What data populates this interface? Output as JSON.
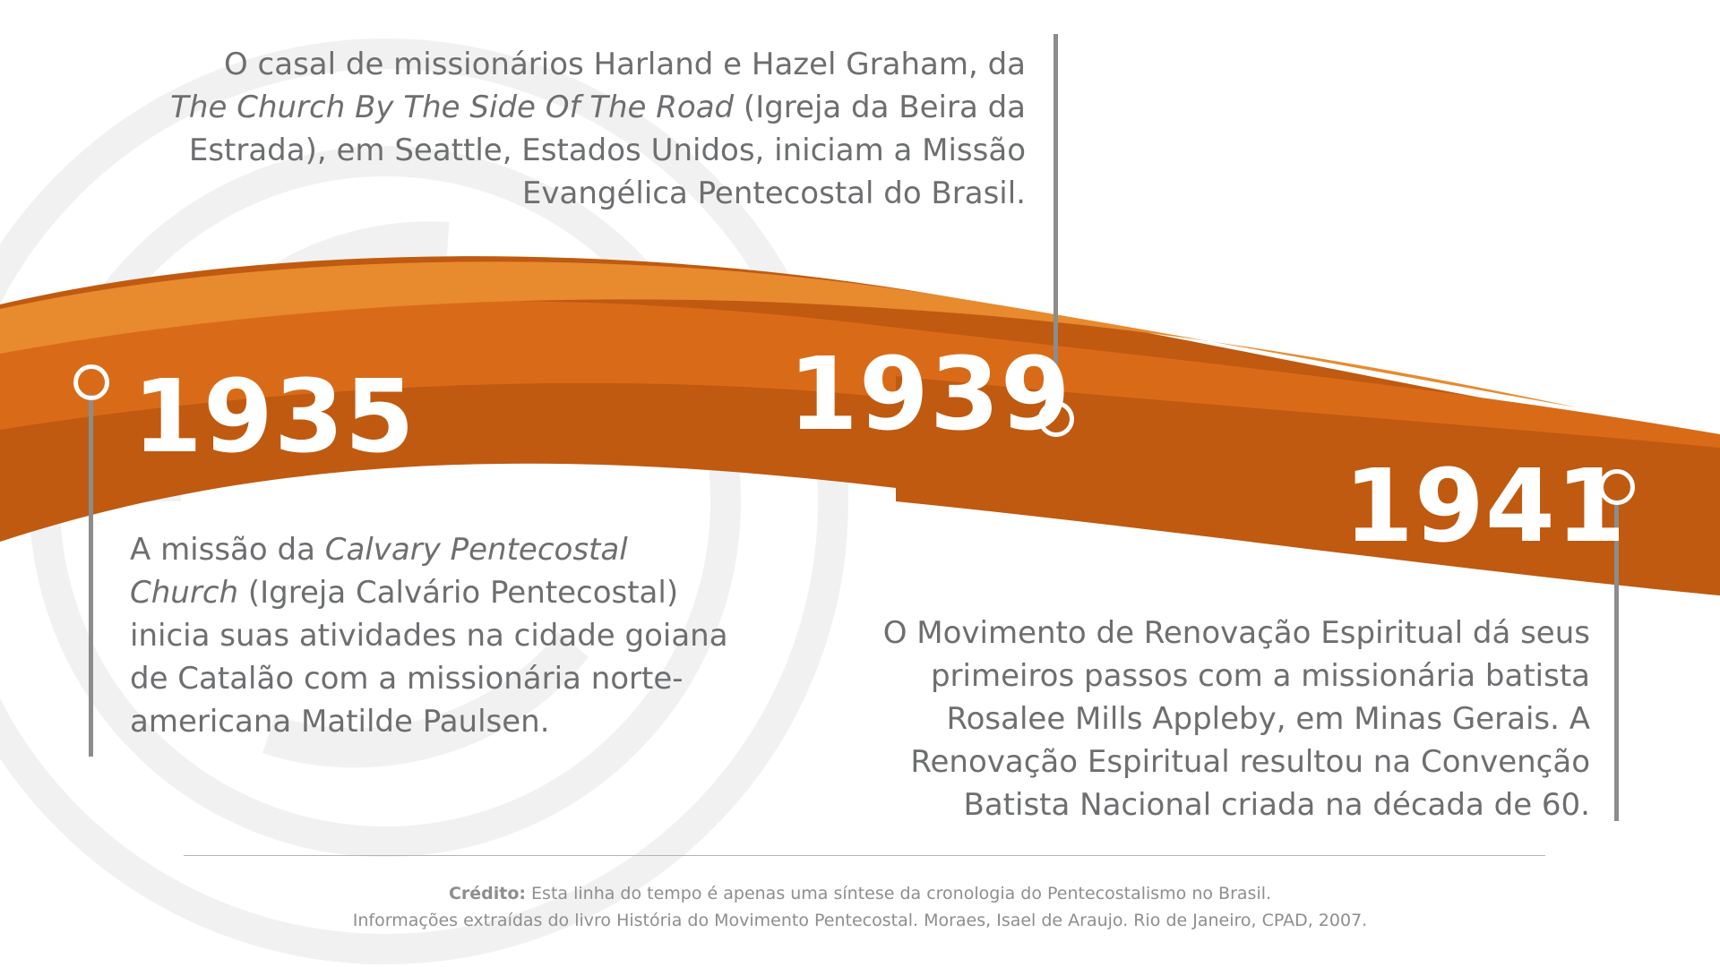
{
  "colors": {
    "band_light": "#e88a2e",
    "band_mid": "#d96b18",
    "band_dark": "#c05a10",
    "text_gray": "#6d6e70",
    "pin_gray": "#8c8c8c",
    "watermark": "#f1f1f1"
  },
  "events": [
    {
      "year": "1935",
      "text_runs": [
        {
          "text": "A missão da ",
          "italic": false
        },
        {
          "text": "Calvary Pentecostal Church",
          "italic": true
        },
        {
          "text": " (Igreja Calvário Pentecostal) inicia suas atividades na cidade goiana de Catalão com a missionária norte-americana Matilde Paulsen.",
          "italic": false
        }
      ]
    },
    {
      "year": "1939",
      "text_runs": [
        {
          "text": "O casal de missionários Harland e Hazel Graham, da ",
          "italic": false
        },
        {
          "text": "The Church By The Side Of The Road",
          "italic": true
        },
        {
          "text": " (Igreja da Beira da Estrada), em Seattle, Estados Unidos, iniciam a Missão Evangélica Pentecostal do Brasil.",
          "italic": false
        }
      ]
    },
    {
      "year": "1941",
      "text_runs": [
        {
          "text": "O Movimento de Renovação Espiritual dá seus primeiros passos com a missionária batista Rosalee Mills Appleby, em Minas Gerais. A Renovação Espiritual resultou na Convenção Batista Nacional criada na década de 60.",
          "italic": false
        }
      ]
    }
  ],
  "credit": {
    "label": "Crédito:",
    "line1": " Esta linha do tempo é apenas uma síntese da cronologia do Pentecostalismo no Brasil.",
    "line2": "Informações extraídas do livro História do Movimento Pentecostal. Moraes, Isael de Araujo. Rio de Janeiro, CPAD, 2007."
  }
}
